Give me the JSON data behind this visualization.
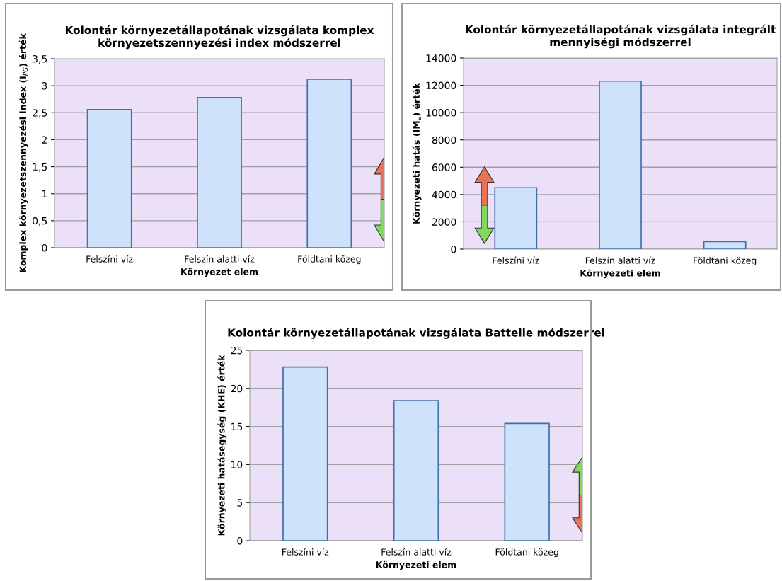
{
  "chart_data": [
    {
      "type": "bar",
      "title": "Kolontár környezetállapotának vizsgálata komplex környezetszennyezési index módszerrel",
      "xlabel": "Környezet elem",
      "ylabel": "Komplex környezetszennyezési index (I$_{PG}$) érték",
      "categories": [
        "Felszíni víz",
        "Felszín alatti víz",
        "Földtani közeg"
      ],
      "values": [
        2.56,
        2.78,
        3.12
      ],
      "color": "#cfe2fb",
      "ylim": [
        0,
        3.5
      ],
      "yticks": [
        0,
        {
          "value": 0.5,
          "label": "0,5"
        },
        1,
        {
          "value": 1.5,
          "label": "1,5"
        },
        2,
        {
          "value": 2.5,
          "label": "2,5"
        },
        3,
        {
          "value": 3.5,
          "label": "3,5"
        }
      ],
      "grid": "y"
    },
    {
      "type": "bar",
      "title": "Kolontár környezetállapotának vizsgálata integrált mennyiségi módszerrel",
      "xlabel": "Környezeti elem",
      "ylabel": "Környezeti hatás (IM$_{e}$) érték",
      "categories": [
        "Felszíni víz",
        "Felszín alatti víz",
        "Földtani közeg"
      ],
      "values": [
        4500,
        12300,
        550
      ],
      "color": "#cfe2fb",
      "ylim": [
        0,
        14000
      ],
      "yticks": [
        0,
        2000,
        4000,
        6000,
        8000,
        10000,
        12000,
        14000
      ],
      "grid": "y"
    },
    {
      "type": "bar",
      "title": "Kolontár környezetállapotának vizsgálata Battelle módszerrel",
      "xlabel": "Környezeti elem",
      "ylabel": "Környezeti hatásegység (KHE) érték",
      "categories": [
        "Felszíni víz",
        "Felszín alatti víz",
        "Földtani közeg"
      ],
      "values": [
        22.8,
        18.4,
        15.4
      ],
      "color": "#cfe2fb",
      "ylim": [
        0,
        25
      ],
      "yticks": [
        0,
        5,
        10,
        15,
        20,
        25
      ],
      "grid": "y"
    }
  ]
}
